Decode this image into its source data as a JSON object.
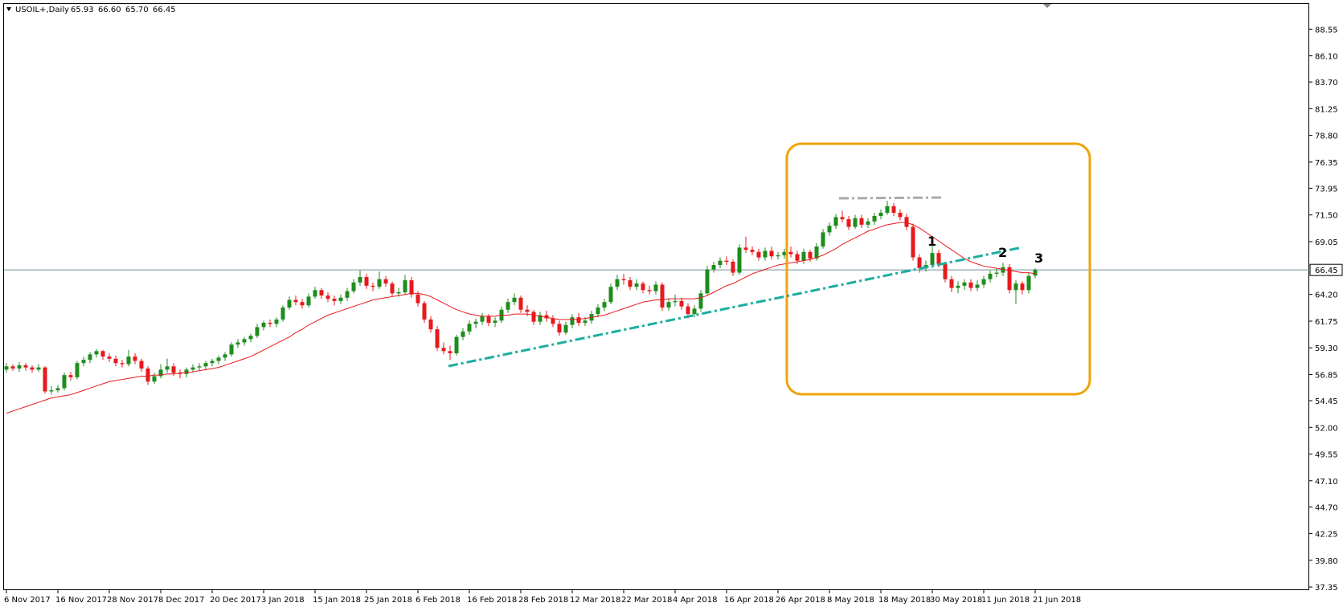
{
  "chart_data": {
    "type": "candlestick",
    "title": "USOIL+,Daily",
    "header_values": [
      "65.93",
      "66.60",
      "65.70",
      "66.45"
    ],
    "categories": [
      "6 Nov 2017",
      null,
      null,
      null,
      null,
      null,
      null,
      null,
      "16 Nov 2017",
      null,
      null,
      null,
      null,
      null,
      null,
      null,
      "28 Nov 2017",
      null,
      null,
      null,
      null,
      null,
      null,
      null,
      "8 Dec 2017",
      null,
      null,
      null,
      null,
      null,
      null,
      null,
      "20 Dec 2017",
      null,
      null,
      null,
      null,
      null,
      null,
      null,
      "3 Jan 2018",
      null,
      null,
      null,
      null,
      null,
      null,
      null,
      "15 Jan 2018",
      null,
      null,
      null,
      null,
      null,
      null,
      null,
      "25 Jan 2018",
      null,
      null,
      null,
      null,
      null,
      null,
      null,
      "6 Feb 2018",
      null,
      null,
      null,
      null,
      null,
      null,
      null,
      "16 Feb 2018",
      null,
      null,
      null,
      null,
      null,
      null,
      null,
      "28 Feb 2018",
      null,
      null,
      null,
      null,
      null,
      null,
      null,
      "12 Mar 2018",
      null,
      null,
      null,
      null,
      null,
      null,
      null,
      "22 Mar 2018",
      null,
      null,
      null,
      null,
      null,
      null,
      null,
      "4 Apr 2018",
      null,
      null,
      null,
      null,
      null,
      null,
      null,
      "16 Apr 2018",
      null,
      null,
      null,
      null,
      null,
      null,
      null,
      "26 Apr 2018",
      null,
      null,
      null,
      null,
      null,
      null,
      null,
      "8 May 2018",
      null,
      null,
      null,
      null,
      null,
      null,
      null,
      "18 May 2018",
      null,
      null,
      null,
      null,
      null,
      null,
      null,
      "30 May 2018",
      null,
      null,
      null,
      null,
      null,
      null,
      null,
      "11 Jun 2018",
      null,
      null,
      null,
      null,
      null,
      null,
      null,
      "21 Jun 2018"
    ],
    "ohlc": [
      [
        57.3,
        57.9,
        57.0,
        57.6
      ],
      [
        57.6,
        57.8,
        57.2,
        57.4
      ],
      [
        57.4,
        58.0,
        57.1,
        57.7
      ],
      [
        57.7,
        57.9,
        57.2,
        57.5
      ],
      [
        57.5,
        57.7,
        57.0,
        57.3
      ],
      [
        57.3,
        57.8,
        57.1,
        57.5
      ],
      [
        57.5,
        57.6,
        55.1,
        55.3
      ],
      [
        55.3,
        55.8,
        55.0,
        55.4
      ],
      [
        55.4,
        55.9,
        55.2,
        55.6
      ],
      [
        55.6,
        57.0,
        55.4,
        56.8
      ],
      [
        56.8,
        57.1,
        56.3,
        56.6
      ],
      [
        56.6,
        58.1,
        56.4,
        57.9
      ],
      [
        57.9,
        58.5,
        57.6,
        58.2
      ],
      [
        58.2,
        58.9,
        57.9,
        58.7
      ],
      [
        58.7,
        59.2,
        58.4,
        59.0
      ],
      [
        59.0,
        59.1,
        58.2,
        58.5
      ],
      [
        58.5,
        58.8,
        58.0,
        58.3
      ],
      [
        58.3,
        58.6,
        57.6,
        57.9
      ],
      [
        57.9,
        58.2,
        57.5,
        57.8
      ],
      [
        57.8,
        59.1,
        57.6,
        58.5
      ],
      [
        58.5,
        58.8,
        57.8,
        58.1
      ],
      [
        58.1,
        58.3,
        57.1,
        57.4
      ],
      [
        57.4,
        57.6,
        55.9,
        56.2
      ],
      [
        56.2,
        57.0,
        56.0,
        56.7
      ],
      [
        56.7,
        57.8,
        56.5,
        57.3
      ],
      [
        57.3,
        58.3,
        57.0,
        57.6
      ],
      [
        57.6,
        57.9,
        56.7,
        57.0
      ],
      [
        57.0,
        57.3,
        56.5,
        56.9
      ],
      [
        56.9,
        57.5,
        56.6,
        57.3
      ],
      [
        57.3,
        57.8,
        57.0,
        57.5
      ],
      [
        57.5,
        57.9,
        57.2,
        57.6
      ],
      [
        57.6,
        58.1,
        57.3,
        57.9
      ],
      [
        57.9,
        58.3,
        57.6,
        58.1
      ],
      [
        58.1,
        58.6,
        57.8,
        58.4
      ],
      [
        58.4,
        58.9,
        58.1,
        58.7
      ],
      [
        58.7,
        59.8,
        58.5,
        59.6
      ],
      [
        59.6,
        60.1,
        59.3,
        59.8
      ],
      [
        59.8,
        60.3,
        59.5,
        60.1
      ],
      [
        60.1,
        60.6,
        59.8,
        60.4
      ],
      [
        60.4,
        61.5,
        60.2,
        61.2
      ],
      [
        61.2,
        61.8,
        60.9,
        61.6
      ],
      [
        61.6,
        61.9,
        61.2,
        61.5
      ],
      [
        61.5,
        62.1,
        61.2,
        61.9
      ],
      [
        61.9,
        63.2,
        61.7,
        63.0
      ],
      [
        63.0,
        64.0,
        62.8,
        63.7
      ],
      [
        63.7,
        64.1,
        63.2,
        63.5
      ],
      [
        63.5,
        63.8,
        62.9,
        63.2
      ],
      [
        63.2,
        64.3,
        63.0,
        64.0
      ],
      [
        64.0,
        64.9,
        63.8,
        64.6
      ],
      [
        64.6,
        64.8,
        63.8,
        64.1
      ],
      [
        64.1,
        64.4,
        63.5,
        63.8
      ],
      [
        63.8,
        64.1,
        63.2,
        63.6
      ],
      [
        63.6,
        64.2,
        63.3,
        63.9
      ],
      [
        63.9,
        64.8,
        63.6,
        64.5
      ],
      [
        64.5,
        65.6,
        64.3,
        65.3
      ],
      [
        65.3,
        66.4,
        65.0,
        65.8
      ],
      [
        65.8,
        66.1,
        64.7,
        65.0
      ],
      [
        65.0,
        65.3,
        64.5,
        64.9
      ],
      [
        64.9,
        66.3,
        64.7,
        65.6
      ],
      [
        65.6,
        65.9,
        64.9,
        65.2
      ],
      [
        65.2,
        65.4,
        64.0,
        64.3
      ],
      [
        64.3,
        64.8,
        64.0,
        64.4
      ],
      [
        64.4,
        66.0,
        64.2,
        65.5
      ],
      [
        65.5,
        65.8,
        63.9,
        64.2
      ],
      [
        64.2,
        64.5,
        63.1,
        63.4
      ],
      [
        63.4,
        63.6,
        61.6,
        61.9
      ],
      [
        61.9,
        62.2,
        60.7,
        61.0
      ],
      [
        61.0,
        61.3,
        59.0,
        59.3
      ],
      [
        59.3,
        59.8,
        58.7,
        59.0
      ],
      [
        59.0,
        59.5,
        58.2,
        58.8
      ],
      [
        58.8,
        60.5,
        58.6,
        60.3
      ],
      [
        60.3,
        61.1,
        60.0,
        60.8
      ],
      [
        60.8,
        61.8,
        60.5,
        61.5
      ],
      [
        61.5,
        62.0,
        61.1,
        61.7
      ],
      [
        61.7,
        62.5,
        61.4,
        62.2
      ],
      [
        62.2,
        62.4,
        61.3,
        61.6
      ],
      [
        61.6,
        62.1,
        61.2,
        61.8
      ],
      [
        61.8,
        63.1,
        61.6,
        62.8
      ],
      [
        62.8,
        63.8,
        62.5,
        63.5
      ],
      [
        63.5,
        64.3,
        63.2,
        63.9
      ],
      [
        63.9,
        64.1,
        62.5,
        62.8
      ],
      [
        62.8,
        63.2,
        62.2,
        62.6
      ],
      [
        62.6,
        62.8,
        61.4,
        61.7
      ],
      [
        61.7,
        62.6,
        61.4,
        62.3
      ],
      [
        62.3,
        62.7,
        61.7,
        62.0
      ],
      [
        62.0,
        62.3,
        61.2,
        61.5
      ],
      [
        61.5,
        61.8,
        60.4,
        60.7
      ],
      [
        60.7,
        61.7,
        60.5,
        61.4
      ],
      [
        61.4,
        62.4,
        61.1,
        62.1
      ],
      [
        62.1,
        62.5,
        61.3,
        61.6
      ],
      [
        61.6,
        62.1,
        61.3,
        61.8
      ],
      [
        61.8,
        62.7,
        61.5,
        62.4
      ],
      [
        62.4,
        63.3,
        62.1,
        63.0
      ],
      [
        63.0,
        63.8,
        62.7,
        63.5
      ],
      [
        63.5,
        65.2,
        63.3,
        64.9
      ],
      [
        64.9,
        66.0,
        64.6,
        65.6
      ],
      [
        65.6,
        66.1,
        65.1,
        65.5
      ],
      [
        65.5,
        65.8,
        64.6,
        64.9
      ],
      [
        64.9,
        65.6,
        64.6,
        65.2
      ],
      [
        65.2,
        65.4,
        64.3,
        64.6
      ],
      [
        64.6,
        65.0,
        64.2,
        64.5
      ],
      [
        64.5,
        65.4,
        64.2,
        65.1
      ],
      [
        65.1,
        65.3,
        62.7,
        63.0
      ],
      [
        63.0,
        63.8,
        62.7,
        63.5
      ],
      [
        63.5,
        64.2,
        63.1,
        63.6
      ],
      [
        63.6,
        63.9,
        62.8,
        63.1
      ],
      [
        63.1,
        63.4,
        62.0,
        62.4
      ],
      [
        62.4,
        63.2,
        62.1,
        62.9
      ],
      [
        62.9,
        64.6,
        62.6,
        64.3
      ],
      [
        64.3,
        66.8,
        64.1,
        66.5
      ],
      [
        66.5,
        67.2,
        66.2,
        66.9
      ],
      [
        66.9,
        67.6,
        66.6,
        67.3
      ],
      [
        67.3,
        67.7,
        66.9,
        67.2
      ],
      [
        67.2,
        67.4,
        65.9,
        66.2
      ],
      [
        66.2,
        68.8,
        66.0,
        68.5
      ],
      [
        68.5,
        69.5,
        68.0,
        68.3
      ],
      [
        68.3,
        68.6,
        67.8,
        68.1
      ],
      [
        68.1,
        68.4,
        67.3,
        67.6
      ],
      [
        67.6,
        68.5,
        67.3,
        68.2
      ],
      [
        68.2,
        68.6,
        67.4,
        67.7
      ],
      [
        67.7,
        68.1,
        67.4,
        67.8
      ],
      [
        67.8,
        68.4,
        67.5,
        68.1
      ],
      [
        68.1,
        68.6,
        67.6,
        67.9
      ],
      [
        67.9,
        68.2,
        67.0,
        67.3
      ],
      [
        67.3,
        68.4,
        67.0,
        68.1
      ],
      [
        68.1,
        68.3,
        67.2,
        67.5
      ],
      [
        67.5,
        68.9,
        67.3,
        68.6
      ],
      [
        68.6,
        70.2,
        68.4,
        69.9
      ],
      [
        69.9,
        70.8,
        69.6,
        70.5
      ],
      [
        70.5,
        71.6,
        70.2,
        71.3
      ],
      [
        71.3,
        71.9,
        70.8,
        71.1
      ],
      [
        71.1,
        71.4,
        70.1,
        70.4
      ],
      [
        70.4,
        71.5,
        70.2,
        71.2
      ],
      [
        71.2,
        71.5,
        70.3,
        70.6
      ],
      [
        70.6,
        71.2,
        70.3,
        70.9
      ],
      [
        70.9,
        71.7,
        70.6,
        71.4
      ],
      [
        71.4,
        72.0,
        71.1,
        71.7
      ],
      [
        71.7,
        72.8,
        71.5,
        72.3
      ],
      [
        72.3,
        72.6,
        71.4,
        71.7
      ],
      [
        71.7,
        72.0,
        71.0,
        71.3
      ],
      [
        71.3,
        71.6,
        70.1,
        70.4
      ],
      [
        70.4,
        70.7,
        67.3,
        67.6
      ],
      [
        67.6,
        67.9,
        66.2,
        66.6
      ],
      [
        66.6,
        67.3,
        66.3,
        66.9
      ],
      [
        66.9,
        68.7,
        66.6,
        68.0
      ],
      [
        68.0,
        68.3,
        66.7,
        67.0
      ],
      [
        67.0,
        67.2,
        65.3,
        65.6
      ],
      [
        65.6,
        65.9,
        64.4,
        64.8
      ],
      [
        64.8,
        65.4,
        64.3,
        65.0
      ],
      [
        65.0,
        65.6,
        64.6,
        65.3
      ],
      [
        65.3,
        65.6,
        64.5,
        64.8
      ],
      [
        64.8,
        65.5,
        64.5,
        65.1
      ],
      [
        65.1,
        65.9,
        64.8,
        65.6
      ],
      [
        65.6,
        66.4,
        65.3,
        66.1
      ],
      [
        66.1,
        66.6,
        65.8,
        66.2
      ],
      [
        66.2,
        67.1,
        65.9,
        66.7
      ],
      [
        66.7,
        67.0,
        64.3,
        64.6
      ],
      [
        64.6,
        65.5,
        63.3,
        65.2
      ],
      [
        65.2,
        65.4,
        64.2,
        64.6
      ],
      [
        64.6,
        66.2,
        64.3,
        65.9
      ],
      [
        65.93,
        66.6,
        65.7,
        66.45
      ]
    ],
    "up_color": "#1e8c1e",
    "down_color": "#e8191d",
    "ma": [
      53.3,
      53.5,
      53.7,
      53.9,
      54.1,
      54.3,
      54.5,
      54.7,
      54.8,
      54.9,
      55.0,
      55.2,
      55.4,
      55.6,
      55.8,
      56.0,
      56.2,
      56.3,
      56.4,
      56.5,
      56.6,
      56.7,
      56.7,
      56.8,
      56.8,
      56.9,
      56.9,
      57.0,
      57.0,
      57.1,
      57.2,
      57.3,
      57.4,
      57.5,
      57.7,
      57.9,
      58.1,
      58.3,
      58.5,
      58.8,
      59.1,
      59.4,
      59.7,
      60.0,
      60.3,
      60.7,
      61.0,
      61.4,
      61.7,
      62.0,
      62.3,
      62.5,
      62.7,
      62.9,
      63.1,
      63.3,
      63.5,
      63.7,
      63.8,
      63.9,
      64.0,
      64.1,
      64.2,
      64.3,
      64.3,
      64.2,
      64.0,
      63.7,
      63.4,
      63.1,
      62.8,
      62.6,
      62.4,
      62.3,
      62.2,
      62.2,
      62.2,
      62.3,
      62.3,
      62.4,
      62.4,
      62.4,
      62.3,
      62.2,
      62.1,
      62.0,
      61.9,
      61.9,
      61.9,
      61.9,
      62.0,
      62.1,
      62.2,
      62.3,
      62.5,
      62.7,
      62.9,
      63.1,
      63.3,
      63.5,
      63.6,
      63.7,
      63.7,
      63.8,
      63.8,
      63.8,
      63.8,
      63.8,
      63.9,
      64.1,
      64.4,
      64.7,
      65.0,
      65.2,
      65.5,
      65.8,
      66.1,
      66.3,
      66.5,
      66.7,
      66.9,
      67.0,
      67.1,
      67.2,
      67.3,
      67.4,
      67.6,
      67.8,
      68.1,
      68.4,
      68.8,
      69.1,
      69.4,
      69.7,
      70.0,
      70.2,
      70.4,
      70.6,
      70.7,
      70.8,
      70.8,
      70.6,
      70.3,
      69.9,
      69.5,
      69.1,
      68.7,
      68.3,
      67.9,
      67.5,
      67.2,
      67.0,
      66.8,
      66.7,
      66.6,
      66.5,
      66.4,
      66.3,
      66.2,
      66.2,
      66.1
    ],
    "ma_color": "#e8191d",
    "last_price": 66.45,
    "ylim": [
      37.06,
      90.93
    ],
    "yticks": [
      88.55,
      {
        "value": 86.1,
        "label": "86.10"
      },
      {
        "value": 83.7,
        "label": "83.70"
      },
      81.25,
      {
        "value": 78.8,
        "label": "78.80"
      },
      76.35,
      73.95,
      {
        "value": 71.5,
        "label": "71.50"
      },
      69.05,
      {
        "value": 64.2,
        "label": "64.20"
      },
      61.75,
      {
        "value": 59.3,
        "label": "59.30"
      },
      56.85,
      54.45,
      {
        "value": 52,
        "label": "52.00"
      },
      49.55,
      {
        "value": 47.1,
        "label": "47.10"
      },
      {
        "value": 44.7,
        "label": "44.70"
      },
      42.25,
      {
        "value": 39.8,
        "label": "39.80"
      },
      37.35
    ],
    "annotations": [
      "1",
      "2",
      "3"
    ]
  }
}
